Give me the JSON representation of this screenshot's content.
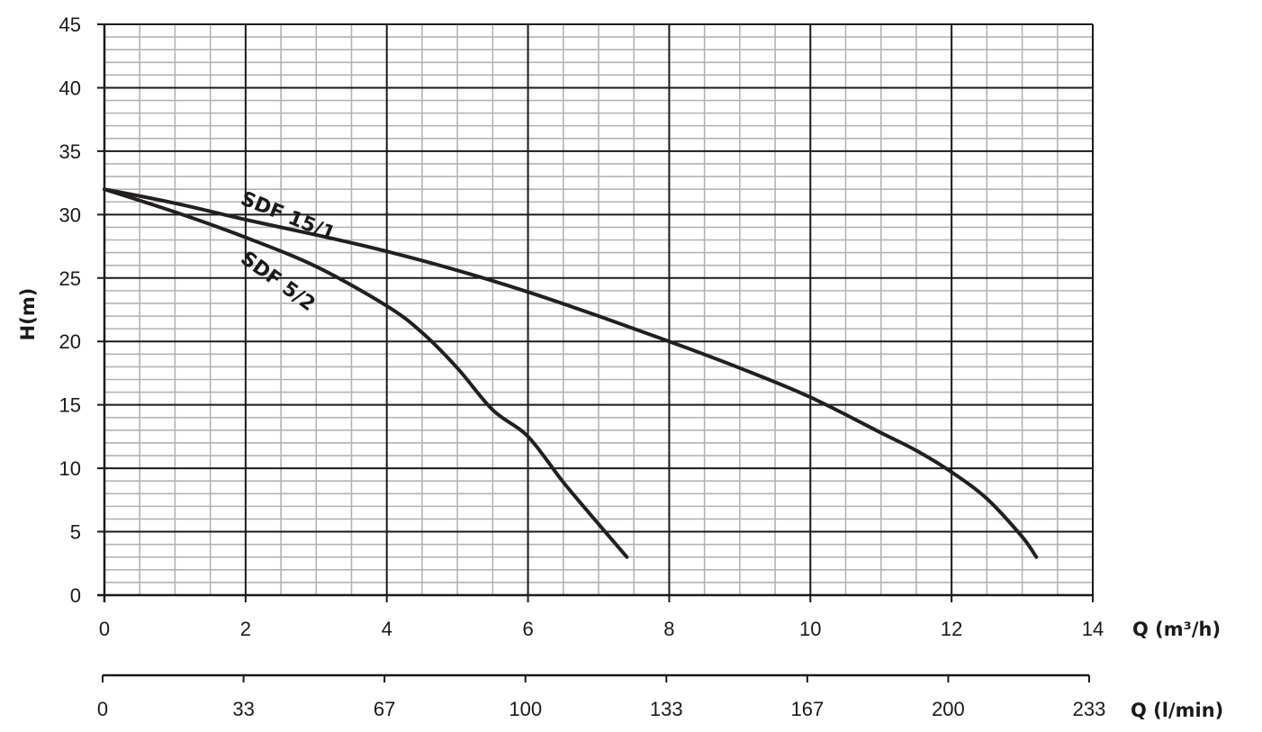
{
  "chart_data": {
    "type": "line",
    "ylabel": "H(m)",
    "xlabel": "Q (m³/h)",
    "xlabel_secondary": "Q (l/min)",
    "xlim": [
      0,
      14
    ],
    "ylim": [
      0,
      45
    ],
    "x_ticks": [
      "0",
      "2",
      "4",
      "6",
      "8",
      "10",
      "12",
      "14"
    ],
    "y_ticks": [
      "0",
      "5",
      "10",
      "15",
      "20",
      "25",
      "30",
      "35",
      "40",
      "45"
    ],
    "x_secondary_ticks": [
      "0",
      "33",
      "67",
      "100",
      "133",
      "167",
      "200",
      "233"
    ],
    "grid": true,
    "series": [
      {
        "name": "SDF 15/1",
        "x": [
          0,
          1,
          2,
          3,
          4,
          5,
          6,
          7,
          8,
          9,
          10,
          11,
          11.5,
          12,
          12.5,
          13,
          13.2
        ],
        "y": [
          32,
          30.9,
          29.6,
          28.4,
          27.1,
          25.6,
          23.9,
          22,
          20,
          17.9,
          15.6,
          12.8,
          11.4,
          9.7,
          7.6,
          4.6,
          3
        ]
      },
      {
        "name": "SDF 5/2",
        "x": [
          0,
          1,
          2,
          3,
          4,
          4.5,
          5,
          5.5,
          6,
          6.5,
          7,
          7.4
        ],
        "y": [
          32,
          30.2,
          28.2,
          25.9,
          22.8,
          20.7,
          17.9,
          14.6,
          12.5,
          8.9,
          5.6,
          3
        ]
      }
    ]
  }
}
